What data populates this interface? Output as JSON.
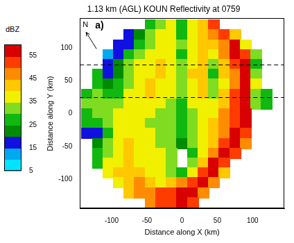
{
  "chart_data": {
    "type": "heatmap",
    "title": "1.13 km (AGL) KOUN Reflectivity at 0759",
    "panel": "a)",
    "north_label": "N",
    "x_label": "Distance along X (km)",
    "y_label": "Distance along Y (km)",
    "xlim": [
      -145,
      145
    ],
    "ylim": [
      -145,
      145
    ],
    "xticks": [
      -100,
      -50,
      0,
      50,
      100
    ],
    "yticks": [
      -100,
      -50,
      0,
      50,
      100
    ],
    "grid": false,
    "x": [
      -135,
      -120,
      -105,
      -90,
      -75,
      -60,
      -45,
      -30,
      -15,
      0,
      15,
      30,
      45,
      60,
      75,
      90,
      105,
      120,
      135
    ],
    "y": [
      135,
      120,
      105,
      90,
      75,
      60,
      45,
      30,
      15,
      0,
      -15,
      -30,
      -45,
      -60,
      -75,
      -90,
      -105,
      -120,
      -135
    ],
    "cells": [
      [
        null,
        null,
        null,
        null,
        null,
        null,
        25,
        30,
        35,
        28,
        38,
        42,
        50,
        null,
        null,
        null,
        null,
        null,
        null
      ],
      [
        null,
        null,
        null,
        null,
        15,
        22,
        30,
        35,
        38,
        28,
        38,
        40,
        45,
        52,
        40,
        null,
        null,
        null,
        null
      ],
      [
        null,
        null,
        null,
        15,
        18,
        28,
        33,
        38,
        35,
        30,
        38,
        40,
        42,
        48,
        55,
        35,
        null,
        null,
        null
      ],
      [
        null,
        null,
        12,
        18,
        28,
        32,
        36,
        38,
        35,
        28,
        38,
        42,
        35,
        45,
        55,
        50,
        30,
        null,
        null
      ],
      [
        null,
        null,
        15,
        20,
        30,
        35,
        38,
        40,
        36,
        30,
        38,
        42,
        30,
        42,
        50,
        55,
        28,
        null,
        null
      ],
      [
        null,
        25,
        18,
        22,
        32,
        36,
        38,
        40,
        35,
        30,
        40,
        42,
        28,
        40,
        48,
        55,
        30,
        null,
        null
      ],
      [
        null,
        28,
        20,
        25,
        33,
        38,
        40,
        38,
        36,
        30,
        38,
        40,
        30,
        38,
        45,
        55,
        35,
        null,
        null
      ],
      [
        28,
        30,
        25,
        28,
        35,
        38,
        40,
        38,
        35,
        30,
        38,
        40,
        32,
        40,
        50,
        55,
        32,
        28,
        null
      ],
      [
        30,
        32,
        30,
        30,
        35,
        38,
        36,
        35,
        33,
        28,
        35,
        38,
        35,
        42,
        50,
        55,
        30,
        25,
        null
      ],
      [
        28,
        30,
        33,
        35,
        38,
        36,
        35,
        33,
        30,
        25,
        33,
        36,
        38,
        45,
        52,
        55,
        null,
        null,
        null
      ],
      [
        25,
        28,
        33,
        36,
        38,
        36,
        33,
        30,
        30,
        28,
        33,
        36,
        40,
        45,
        52,
        55,
        null,
        null,
        null
      ],
      [
        15,
        18,
        28,
        35,
        38,
        38,
        35,
        33,
        30,
        25,
        33,
        38,
        40,
        48,
        55,
        52,
        null,
        null,
        null
      ],
      [
        null,
        20,
        30,
        38,
        40,
        38,
        36,
        33,
        30,
        20,
        30,
        38,
        42,
        50,
        55,
        45,
        null,
        null,
        null
      ],
      [
        null,
        25,
        32,
        38,
        40,
        38,
        36,
        35,
        30,
        null,
        28,
        38,
        45,
        55,
        52,
        null,
        null,
        null,
        null
      ],
      [
        null,
        28,
        35,
        38,
        40,
        38,
        36,
        35,
        32,
        null,
        30,
        42,
        55,
        50,
        null,
        null,
        null,
        null,
        null
      ],
      [
        null,
        null,
        35,
        40,
        42,
        40,
        38,
        36,
        33,
        25,
        35,
        50,
        55,
        40,
        null,
        null,
        null,
        null,
        null
      ],
      [
        null,
        null,
        null,
        38,
        42,
        45,
        42,
        38,
        40,
        45,
        52,
        55,
        45,
        null,
        null,
        null,
        null,
        null,
        null
      ],
      [
        null,
        null,
        null,
        null,
        40,
        45,
        48,
        50,
        52,
        55,
        55,
        48,
        null,
        null,
        null,
        null,
        null,
        null,
        null
      ],
      [
        null,
        null,
        null,
        null,
        null,
        null,
        45,
        50,
        52,
        55,
        50,
        null,
        null,
        null,
        null,
        null,
        null,
        null,
        null
      ]
    ],
    "hlines": {
      "values": [
        25,
        75
      ],
      "line_style": "dashed"
    },
    "colorbar": {
      "label": "dBZ",
      "range": [
        5,
        60
      ],
      "ticks": [
        5,
        15,
        25,
        35,
        45,
        55
      ],
      "colors": [
        "#00e4ff",
        "#00a8f0",
        "#1010e0",
        "#008c00",
        "#10b810",
        "#80dc20",
        "#f0f000",
        "#ffc800",
        "#ff8c00",
        "#ff3c00",
        "#d80000"
      ]
    }
  }
}
